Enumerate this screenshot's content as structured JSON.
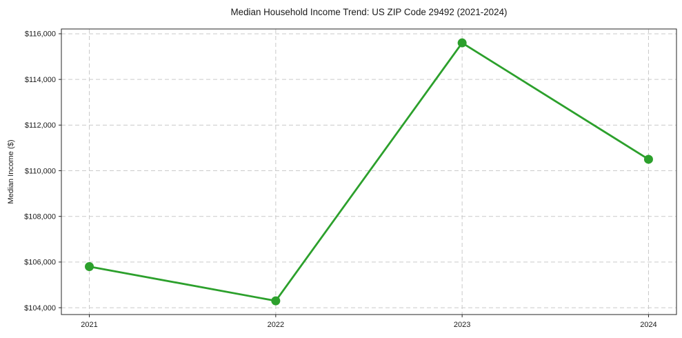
{
  "chart_data": {
    "type": "line",
    "title": "Median Household Income Trend: US ZIP Code 29492 (2021-2024)",
    "xlabel": "",
    "ylabel": "Median Income ($)",
    "x": [
      2021,
      2022,
      2023,
      2024
    ],
    "x_tick_labels": [
      "2021",
      "2022",
      "2023",
      "2024"
    ],
    "series": [
      {
        "name": "Median Household Income",
        "values": [
          105800,
          104300,
          115600,
          110500
        ],
        "color": "#2ca02c",
        "marker": "circle"
      }
    ],
    "yticks": [
      104000,
      106000,
      108000,
      110000,
      112000,
      114000,
      116000
    ],
    "ytick_labels": [
      "$104,000",
      "$106,000",
      "$108,000",
      "$110,000",
      "$112,000",
      "$114,000",
      "$116,000"
    ],
    "ylim": [
      103700,
      116210
    ],
    "xlim": [
      2020.85,
      2024.15
    ],
    "grid": true,
    "grid_style": "dashed",
    "legend_position": "none",
    "colors": {
      "line": "#2ca02c",
      "grid": "#c9c9c9",
      "axis": "#262626",
      "text": "#1a1a1a",
      "background": "#ffffff"
    }
  }
}
